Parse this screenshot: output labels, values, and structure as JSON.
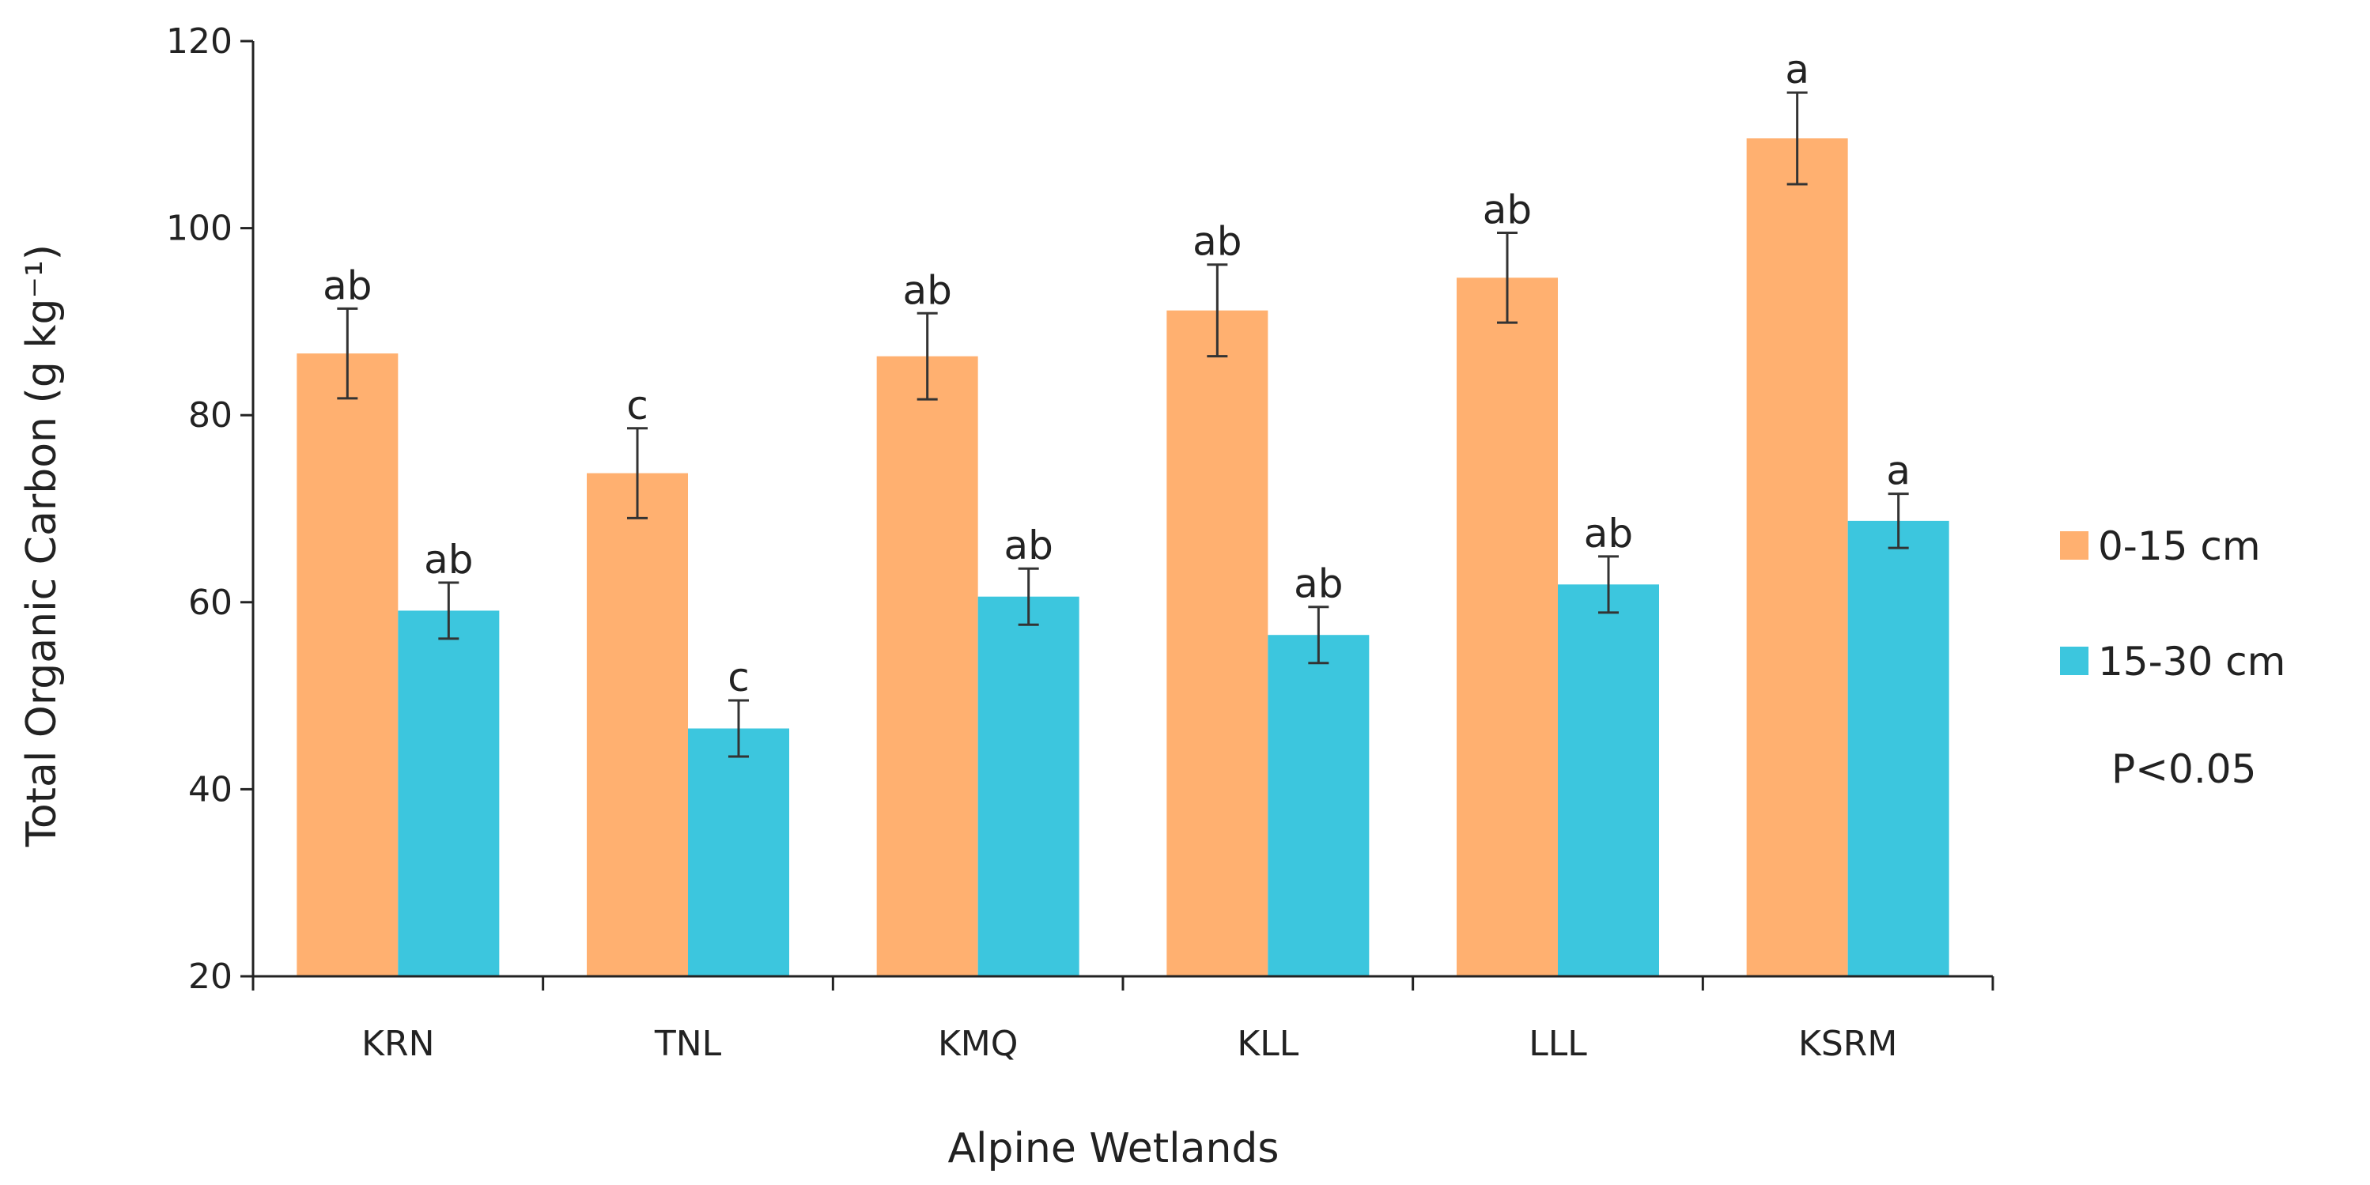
{
  "chart_data": {
    "type": "bar",
    "categories": [
      "KRN",
      "TNL",
      "KMQ",
      "KLL",
      "LLL",
      "KSRM"
    ],
    "series": [
      {
        "name": "0-15 cm",
        "color": "#FFB070",
        "values": [
          86.6,
          73.8,
          86.3,
          91.2,
          94.7,
          109.6
        ],
        "errors": [
          4.8,
          4.8,
          4.6,
          4.9,
          4.8,
          4.9
        ],
        "labels": [
          "ab",
          "c",
          "ab",
          "ab",
          "ab",
          "a"
        ]
      },
      {
        "name": "15-30 cm",
        "color": "#3CC6DE",
        "values": [
          59.1,
          46.5,
          60.6,
          56.5,
          61.9,
          68.7
        ],
        "errors": [
          3.0,
          3.0,
          3.0,
          3.0,
          3.0,
          2.9
        ],
        "labels": [
          "ab",
          "c",
          "ab",
          "ab",
          "ab",
          "a"
        ]
      }
    ],
    "ylim": [
      20,
      120
    ],
    "yticks": [
      20,
      40,
      60,
      80,
      100,
      120
    ],
    "ytick_labels": [
      "20",
      "40",
      "60",
      "80",
      "100",
      "120"
    ],
    "xlabel": "Alpine Wetlands",
    "ylabel": "Total Organic Carbon (g kg⁻¹)",
    "note": "P<0.05",
    "legend_position": "right",
    "grid": false
  }
}
